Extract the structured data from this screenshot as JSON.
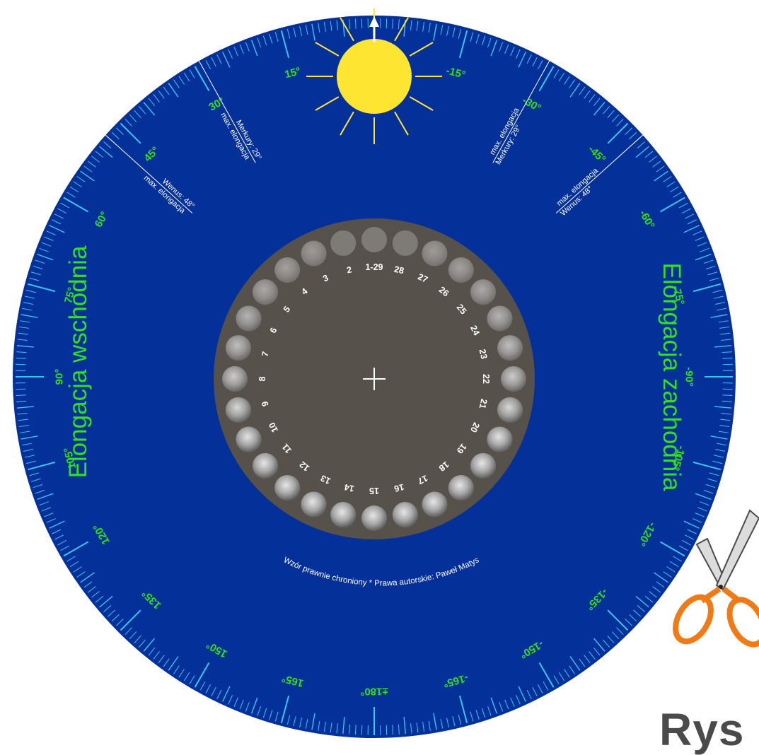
{
  "colors": {
    "disc": "#04309a",
    "tick": "#35c8ee",
    "degree_label": "#31e21a",
    "elongation_title": "#31e21a",
    "moon_plate": "#57514b",
    "sun": "#fde532",
    "sun_rays": "#fde532",
    "white": "#ffffff",
    "scissor_handle": "#f07a15",
    "bottom_text": "#4a4a4a"
  },
  "degree_labels": [
    {
      "angle": 15,
      "text": "15°"
    },
    {
      "angle": 30,
      "text": "30°"
    },
    {
      "angle": 45,
      "text": "45°"
    },
    {
      "angle": 60,
      "text": "60°"
    },
    {
      "angle": 75,
      "text": "75°"
    },
    {
      "angle": 90,
      "text": "90°"
    },
    {
      "angle": 105,
      "text": "105°"
    },
    {
      "angle": 120,
      "text": "120°"
    },
    {
      "angle": 135,
      "text": "135°"
    },
    {
      "angle": 150,
      "text": "150°"
    },
    {
      "angle": 165,
      "text": "165°"
    },
    {
      "angle": 180,
      "text": "±180°"
    },
    {
      "angle": -15,
      "text": "-15°"
    },
    {
      "angle": -30,
      "text": "-30°"
    },
    {
      "angle": -45,
      "text": "-45°"
    },
    {
      "angle": -60,
      "text": "-60°"
    },
    {
      "angle": -75,
      "text": "-75°"
    },
    {
      "angle": -90,
      "text": "-90°"
    },
    {
      "angle": -105,
      "text": "-105°"
    },
    {
      "angle": -120,
      "text": "-120°"
    },
    {
      "angle": -135,
      "text": "-135°"
    },
    {
      "angle": -150,
      "text": "-150°"
    },
    {
      "angle": -165,
      "text": "-165°"
    }
  ],
  "markers": {
    "mercury_east": {
      "angle": 29,
      "line1": "max. elongacja",
      "line2": "Merkury: 29°"
    },
    "mercury_west": {
      "angle": -29,
      "line1": "max. elongacja",
      "line2": "Merkury: 29°"
    },
    "venus_east": {
      "angle": 48,
      "line1": "max. elongacja",
      "line2": "Wenus: 48°"
    },
    "venus_west": {
      "angle": -48,
      "line1": "max. elongacja",
      "line2": "Wenus: 48°"
    }
  },
  "titles": {
    "east": "Elongacja wschodnia",
    "west": "Elongacja zachodnia"
  },
  "copyright": "Wzór prawnie chroniony * Prawa autorskie: Paweł Matys",
  "moon_days": [
    "1-29",
    "2",
    "3",
    "4",
    "5",
    "6",
    "7",
    "8",
    "9",
    "10",
    "11",
    "12",
    "13",
    "14",
    "15",
    "16",
    "17",
    "18",
    "19",
    "20",
    "21",
    "22",
    "23",
    "24",
    "25",
    "26",
    "27",
    "28"
  ],
  "figure_label": "Rys"
}
